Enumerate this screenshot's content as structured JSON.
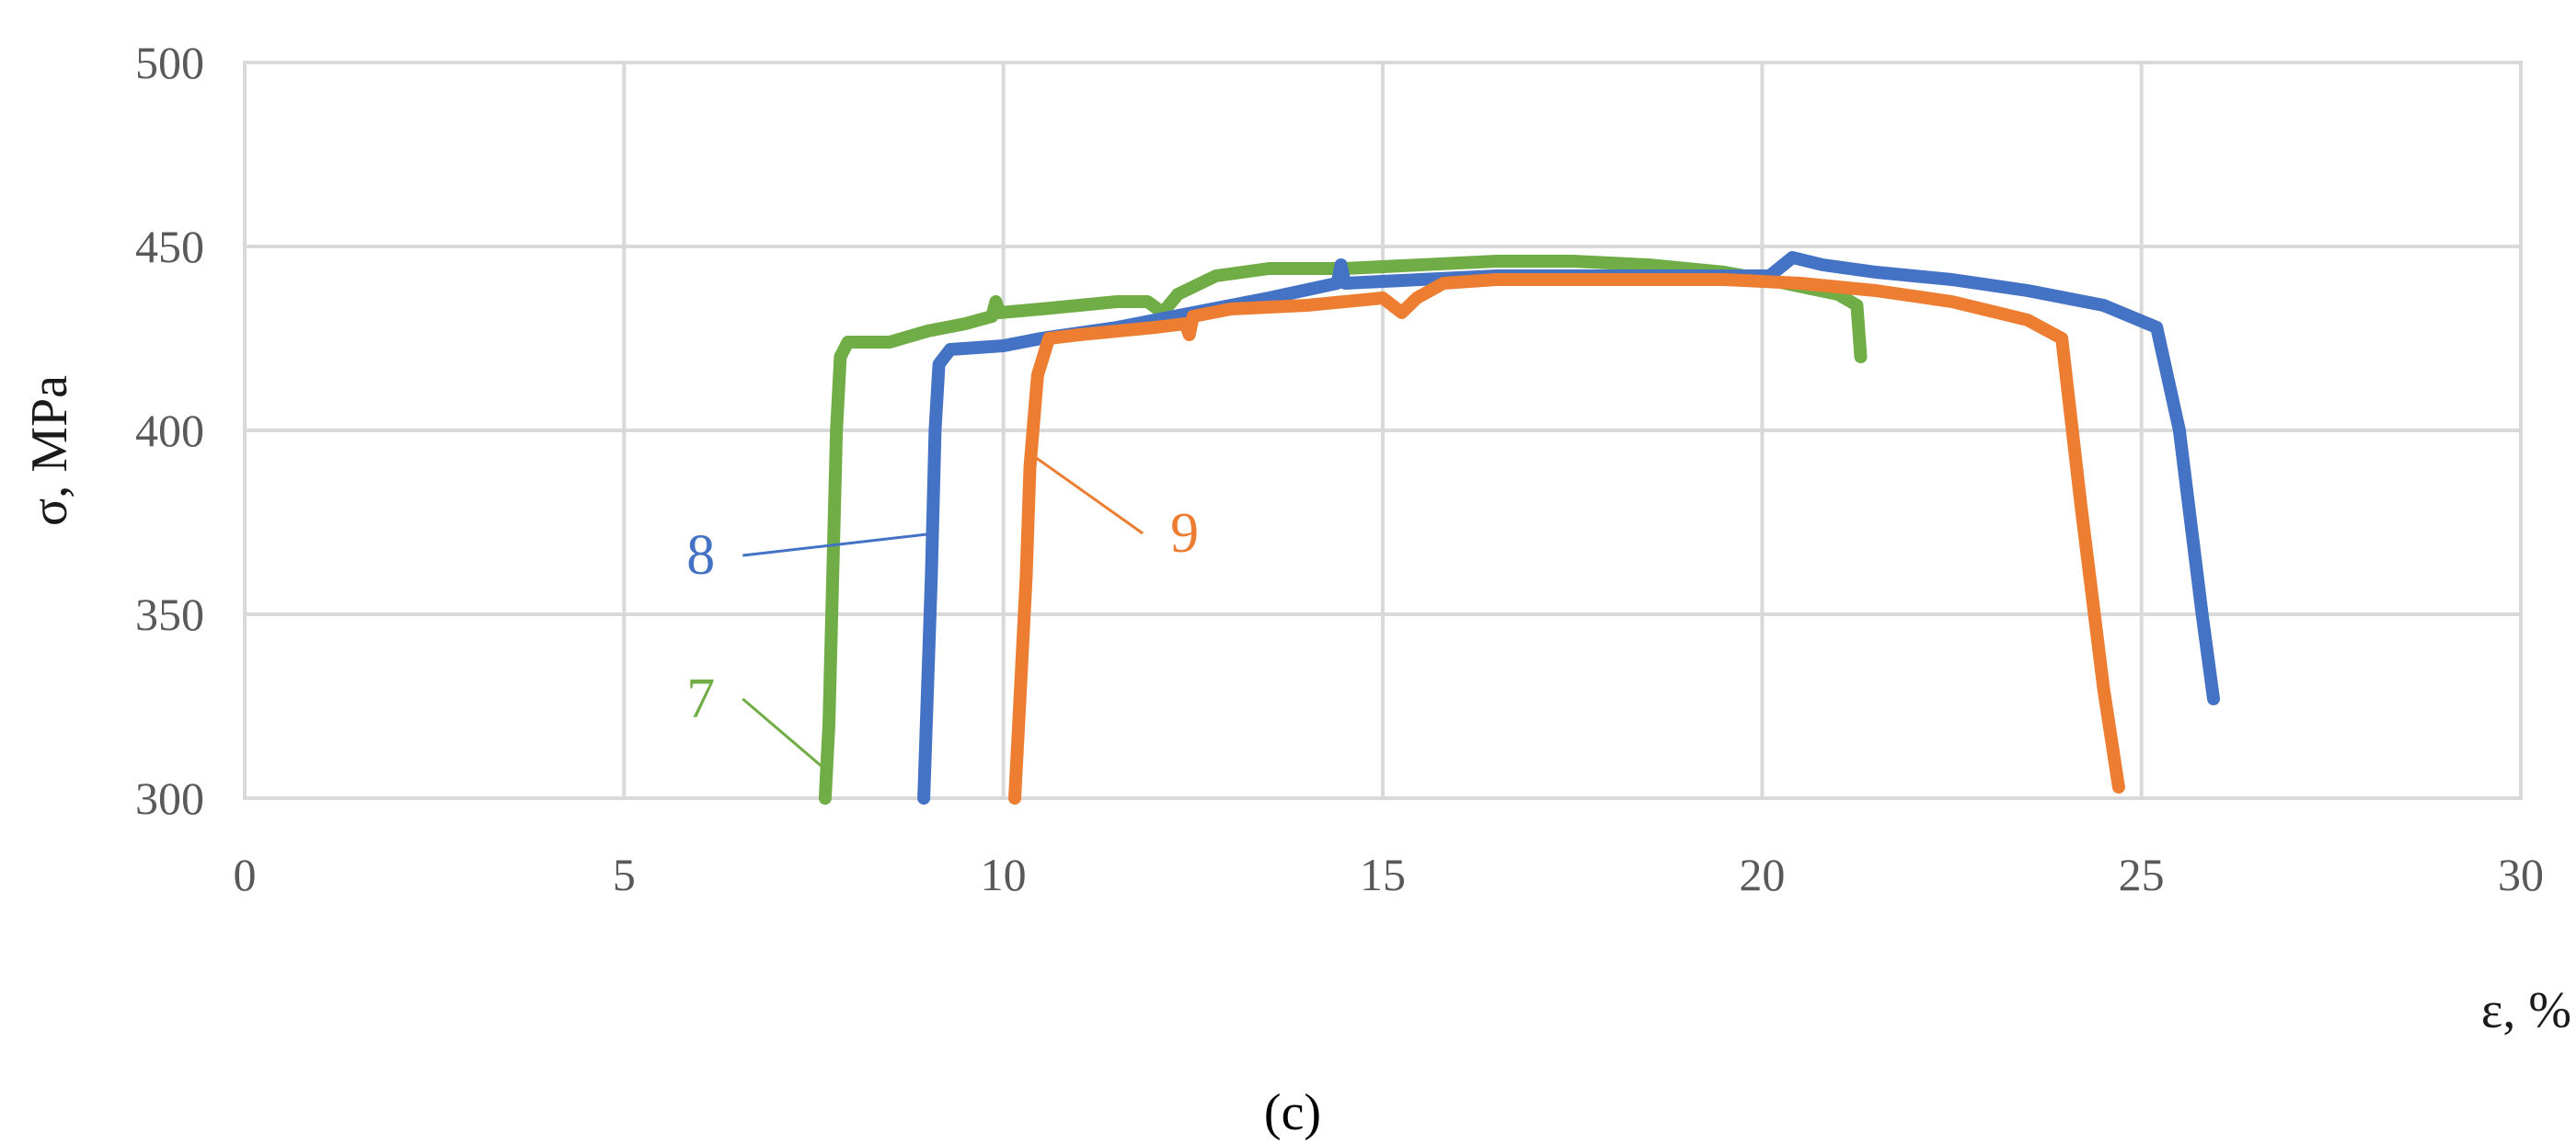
{
  "chart_data": {
    "type": "line",
    "xlabel": "ε, %",
    "ylabel": "σ, MPa",
    "xlim": [
      0,
      30
    ],
    "ylim": [
      300,
      500
    ],
    "x_ticks": [
      0,
      5,
      10,
      15,
      20,
      25,
      30
    ],
    "y_ticks": [
      300,
      350,
      400,
      450,
      500
    ],
    "grid": true,
    "caption": "(c)",
    "colors": {
      "series_7": "#70ad47",
      "series_8": "#4472c4",
      "series_9": "#ed7d31"
    },
    "series": [
      {
        "name": "7",
        "color": "#70ad47",
        "points": [
          [
            7.65,
            300
          ],
          [
            7.7,
            320
          ],
          [
            7.75,
            360
          ],
          [
            7.8,
            400
          ],
          [
            7.85,
            420
          ],
          [
            7.95,
            424
          ],
          [
            8.5,
            424
          ],
          [
            9.0,
            427
          ],
          [
            9.5,
            429
          ],
          [
            9.85,
            431
          ],
          [
            9.9,
            435
          ],
          [
            9.95,
            432
          ],
          [
            10.5,
            433
          ],
          [
            11.0,
            434
          ],
          [
            11.5,
            435
          ],
          [
            11.9,
            435
          ],
          [
            12.1,
            432
          ],
          [
            12.3,
            437
          ],
          [
            12.8,
            442
          ],
          [
            13.5,
            444
          ],
          [
            14.5,
            444
          ],
          [
            15.5,
            445
          ],
          [
            16.5,
            446
          ],
          [
            17.5,
            446
          ],
          [
            18.5,
            445
          ],
          [
            19.5,
            443
          ],
          [
            20.3,
            440
          ],
          [
            21.0,
            437
          ],
          [
            21.25,
            434
          ],
          [
            21.3,
            420
          ]
        ]
      },
      {
        "name": "8",
        "color": "#4472c4",
        "points": [
          [
            8.95,
            300
          ],
          [
            9.0,
            330
          ],
          [
            9.05,
            360
          ],
          [
            9.1,
            400
          ],
          [
            9.15,
            418
          ],
          [
            9.3,
            422
          ],
          [
            10.0,
            423
          ],
          [
            10.5,
            425
          ],
          [
            11.5,
            428
          ],
          [
            12.5,
            432
          ],
          [
            13.5,
            436
          ],
          [
            14.4,
            440
          ],
          [
            14.45,
            445
          ],
          [
            14.5,
            440
          ],
          [
            15.5,
            441
          ],
          [
            16.5,
            442
          ],
          [
            17.5,
            442
          ],
          [
            18.5,
            442
          ],
          [
            19.5,
            442
          ],
          [
            20.1,
            442
          ],
          [
            20.4,
            447
          ],
          [
            20.8,
            445
          ],
          [
            21.5,
            443
          ],
          [
            22.5,
            441
          ],
          [
            23.5,
            438
          ],
          [
            24.5,
            434
          ],
          [
            25.2,
            428
          ],
          [
            25.5,
            400
          ],
          [
            25.8,
            350
          ],
          [
            25.95,
            327
          ]
        ]
      },
      {
        "name": "9",
        "color": "#ed7d31",
        "points": [
          [
            10.15,
            300
          ],
          [
            10.2,
            320
          ],
          [
            10.3,
            360
          ],
          [
            10.35,
            390
          ],
          [
            10.45,
            415
          ],
          [
            10.6,
            425
          ],
          [
            11.0,
            426
          ],
          [
            11.5,
            427
          ],
          [
            12.0,
            428
          ],
          [
            12.4,
            429
          ],
          [
            12.45,
            426
          ],
          [
            12.5,
            431
          ],
          [
            13.0,
            433
          ],
          [
            14.0,
            434
          ],
          [
            15.0,
            436
          ],
          [
            15.25,
            432
          ],
          [
            15.45,
            436
          ],
          [
            15.8,
            440
          ],
          [
            16.5,
            441
          ],
          [
            17.5,
            441
          ],
          [
            18.5,
            441
          ],
          [
            19.5,
            441
          ],
          [
            20.5,
            440
          ],
          [
            21.5,
            438
          ],
          [
            22.5,
            435
          ],
          [
            23.5,
            430
          ],
          [
            23.95,
            425
          ],
          [
            24.2,
            380
          ],
          [
            24.5,
            330
          ],
          [
            24.7,
            303
          ]
        ]
      }
    ],
    "annotations": [
      {
        "text": "7",
        "series": "7",
        "label_at": [
          6.2,
          322
        ],
        "points_to": [
          7.7,
          307
        ]
      },
      {
        "text": "8",
        "series": "8",
        "label_at": [
          6.2,
          361
        ],
        "points_to": [
          9.1,
          372
        ]
      },
      {
        "text": "9",
        "series": "9",
        "label_at": [
          12.2,
          367
        ],
        "points_to": [
          10.4,
          393
        ]
      }
    ]
  }
}
